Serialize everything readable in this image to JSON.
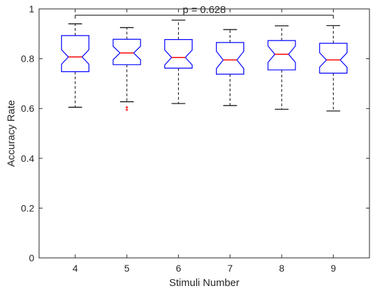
{
  "chart_data": {
    "type": "boxplot",
    "xlabel": "Stimuli Number",
    "ylabel": "Accuracy Rate",
    "ylim": [
      0,
      1
    ],
    "yticks": [
      "0",
      "0.2",
      "0.4",
      "0.6",
      "0.8",
      "1"
    ],
    "categories": [
      "4",
      "5",
      "6",
      "7",
      "8",
      "9"
    ],
    "boxes": [
      {
        "category": "4",
        "min": 0.605,
        "q1": 0.748,
        "median": 0.807,
        "q3": 0.893,
        "max": 0.94,
        "notch_low": 0.778,
        "notch_high": 0.836,
        "outliers": []
      },
      {
        "category": "5",
        "min": 0.627,
        "q1": 0.776,
        "median": 0.823,
        "q3": 0.878,
        "max": 0.925,
        "notch_low": 0.796,
        "notch_high": 0.85,
        "outliers": [
          0.605,
          0.595
        ]
      },
      {
        "category": "6",
        "min": 0.62,
        "q1": 0.762,
        "median": 0.805,
        "q3": 0.877,
        "max": 0.955,
        "notch_low": 0.775,
        "notch_high": 0.835,
        "outliers": []
      },
      {
        "category": "7",
        "min": 0.612,
        "q1": 0.738,
        "median": 0.795,
        "q3": 0.865,
        "max": 0.917,
        "notch_low": 0.76,
        "notch_high": 0.83,
        "outliers": []
      },
      {
        "category": "8",
        "min": 0.597,
        "q1": 0.755,
        "median": 0.818,
        "q3": 0.873,
        "max": 0.932,
        "notch_low": 0.785,
        "notch_high": 0.851,
        "outliers": []
      },
      {
        "category": "9",
        "min": 0.59,
        "q1": 0.742,
        "median": 0.795,
        "q3": 0.862,
        "max": 0.933,
        "notch_low": 0.766,
        "notch_high": 0.824,
        "outliers": []
      }
    ],
    "annotation": {
      "text": "p = 0.628",
      "from": "4",
      "to": "9",
      "y": 0.975
    },
    "grid": false,
    "colors": {
      "box": "#0000ff",
      "median": "#ff0000",
      "whisker": "#000000",
      "outlier": "#ff0000",
      "axis": "#262626"
    }
  }
}
